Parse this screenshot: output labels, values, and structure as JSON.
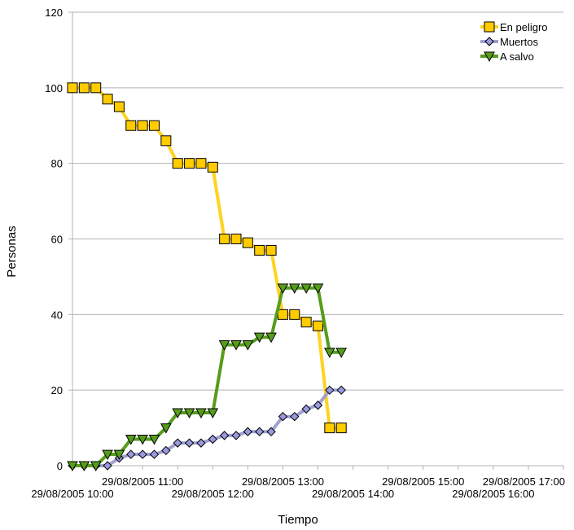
{
  "chart_data": {
    "type": "line",
    "xlabel": "Tiempo",
    "ylabel": "Personas",
    "ylim": [
      0,
      120
    ],
    "yticks": [
      0,
      20,
      40,
      60,
      80,
      100,
      120
    ],
    "grid": true,
    "legend_position": "top-right",
    "x": [
      "10:00",
      "10:30",
      "11:00",
      "11:30",
      "12:00",
      "12:30",
      "13:00",
      "13:30",
      "14:00",
      "14:30",
      "15:00",
      "15:30",
      "16:00",
      "16:30",
      "17:00"
    ],
    "x_tick_labels": [
      "29/08/2005 10:00",
      "29/08/2005 11:00",
      "29/08/2005 12:00",
      "29/08/2005 13:00",
      "29/08/2005 14:00",
      "29/08/2005 15:00",
      "29/08/2005 16:00",
      "29/08/2005 17:00"
    ],
    "series": [
      {
        "name": "En peligro",
        "color": "#ffd320",
        "marker": "square",
        "marker_fill": "#ffcc00",
        "points": [
          [
            "10:00",
            100
          ],
          [
            "10:10",
            100
          ],
          [
            "10:20",
            100
          ],
          [
            "10:30",
            97
          ],
          [
            "10:40",
            95
          ],
          [
            "10:50",
            90
          ],
          [
            "11:00",
            90
          ],
          [
            "11:10",
            90
          ],
          [
            "11:20",
            86
          ],
          [
            "11:30",
            80
          ],
          [
            "11:40",
            80
          ],
          [
            "11:50",
            80
          ],
          [
            "12:00",
            79
          ],
          [
            "12:10",
            60
          ],
          [
            "12:20",
            60
          ],
          [
            "12:30",
            59
          ],
          [
            "12:40",
            57
          ],
          [
            "12:50",
            57
          ],
          [
            "13:00",
            40
          ],
          [
            "13:10",
            40
          ],
          [
            "13:20",
            38
          ],
          [
            "13:30",
            37
          ],
          [
            "13:40",
            10
          ],
          [
            "13:50",
            10
          ]
        ]
      },
      {
        "name": "Muertos",
        "color": "#a0a0d0",
        "marker": "diamond",
        "marker_fill": "#9999dd",
        "points": [
          [
            "10:00",
            0
          ],
          [
            "10:10",
            0
          ],
          [
            "10:20",
            0
          ],
          [
            "10:30",
            0
          ],
          [
            "10:40",
            2
          ],
          [
            "10:50",
            3
          ],
          [
            "11:00",
            3
          ],
          [
            "11:10",
            3
          ],
          [
            "11:20",
            4
          ],
          [
            "11:30",
            6
          ],
          [
            "11:40",
            6
          ],
          [
            "11:50",
            6
          ],
          [
            "12:00",
            7
          ],
          [
            "12:10",
            8
          ],
          [
            "12:20",
            8
          ],
          [
            "12:30",
            9
          ],
          [
            "12:40",
            9
          ],
          [
            "12:50",
            9
          ],
          [
            "13:00",
            13
          ],
          [
            "13:10",
            13
          ],
          [
            "13:20",
            15
          ],
          [
            "13:30",
            16
          ],
          [
            "13:40",
            20
          ],
          [
            "13:50",
            20
          ]
        ]
      },
      {
        "name": "A salvo",
        "color": "#579d1c",
        "marker": "triangle-down",
        "marker_fill": "#579d1c",
        "points": [
          [
            "10:00",
            0
          ],
          [
            "10:10",
            0
          ],
          [
            "10:20",
            0
          ],
          [
            "10:30",
            3
          ],
          [
            "10:40",
            3
          ],
          [
            "10:50",
            7
          ],
          [
            "11:00",
            7
          ],
          [
            "11:10",
            7
          ],
          [
            "11:20",
            10
          ],
          [
            "11:30",
            14
          ],
          [
            "11:40",
            14
          ],
          [
            "11:50",
            14
          ],
          [
            "12:00",
            14
          ],
          [
            "12:10",
            32
          ],
          [
            "12:20",
            32
          ],
          [
            "12:30",
            32
          ],
          [
            "12:40",
            34
          ],
          [
            "12:50",
            34
          ],
          [
            "13:00",
            47
          ],
          [
            "13:10",
            47
          ],
          [
            "13:20",
            47
          ],
          [
            "13:30",
            47
          ],
          [
            "13:40",
            30
          ],
          [
            "13:50",
            30
          ]
        ]
      }
    ]
  }
}
